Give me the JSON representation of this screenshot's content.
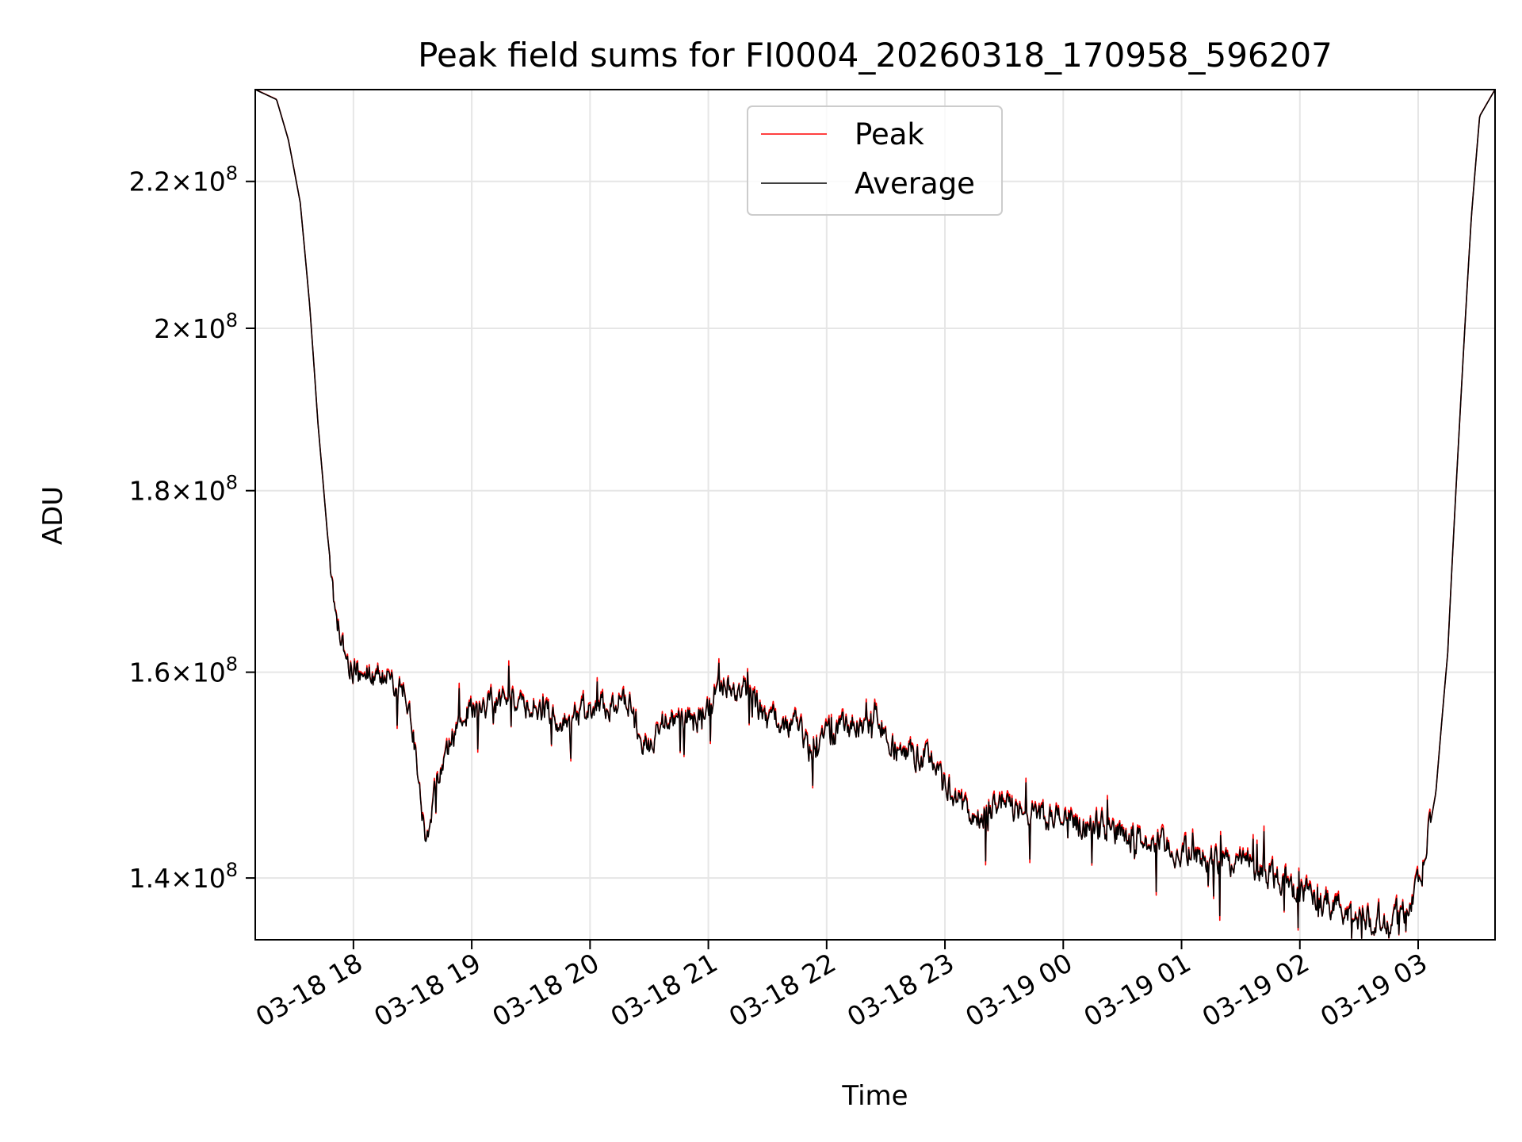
{
  "chart_data": {
    "type": "line",
    "title": "Peak field sums for FI0004_20260318_170958_596207",
    "xlabel": "Time",
    "ylabel": "ADU",
    "yscale": "log",
    "grid": true,
    "legend_position": "top-center",
    "xlim_hours": [
      -0.83,
      9.65
    ],
    "ylim": [
      134500000,
      233500000
    ],
    "x_ticks": [
      {
        "hour": 0,
        "label": "03-18 18"
      },
      {
        "hour": 1,
        "label": "03-18 19"
      },
      {
        "hour": 2,
        "label": "03-18 20"
      },
      {
        "hour": 3,
        "label": "03-18 21"
      },
      {
        "hour": 4,
        "label": "03-18 22"
      },
      {
        "hour": 5,
        "label": "03-18 23"
      },
      {
        "hour": 6,
        "label": "03-19 00"
      },
      {
        "hour": 7,
        "label": "03-19 01"
      },
      {
        "hour": 8,
        "label": "03-19 02"
      },
      {
        "hour": 9,
        "label": "03-19 03"
      }
    ],
    "y_ticks": [
      {
        "value": 140000000,
        "mantissa": "1.4",
        "exp": "8"
      },
      {
        "value": 160000000,
        "mantissa": "1.6",
        "exp": "8"
      },
      {
        "value": 180000000,
        "mantissa": "1.8",
        "exp": "8"
      },
      {
        "value": 200000000,
        "mantissa": "2",
        "exp": "8"
      },
      {
        "value": 220000000,
        "mantissa": "2.2",
        "exp": "8"
      }
    ],
    "series": [
      {
        "name": "Peak",
        "color": "#ff0000",
        "noise": 1000000,
        "offset": 150000
      },
      {
        "name": "Average",
        "color": "#000000",
        "noise": 900000,
        "offset": 0
      }
    ],
    "trend_points_hours_vs_adu": [
      [
        -0.83,
        233500000
      ],
      [
        -0.65,
        232000000
      ],
      [
        -0.55,
        226000000
      ],
      [
        -0.45,
        217000000
      ],
      [
        -0.37,
        203000000
      ],
      [
        -0.3,
        188000000
      ],
      [
        -0.22,
        175000000
      ],
      [
        -0.15,
        166000000
      ],
      [
        -0.05,
        161000000
      ],
      [
        0.1,
        159500000
      ],
      [
        0.3,
        159500000
      ],
      [
        0.45,
        158000000
      ],
      [
        0.55,
        150000000
      ],
      [
        0.6,
        143500000
      ],
      [
        0.75,
        151000000
      ],
      [
        0.95,
        156000000
      ],
      [
        1.2,
        157000000
      ],
      [
        1.5,
        156500000
      ],
      [
        1.8,
        155000000
      ],
      [
        2.1,
        156500000
      ],
      [
        2.35,
        157000000
      ],
      [
        2.45,
        152000000
      ],
      [
        2.6,
        154500000
      ],
      [
        2.8,
        155000000
      ],
      [
        3.0,
        156500000
      ],
      [
        3.15,
        159000000
      ],
      [
        3.3,
        158500000
      ],
      [
        3.5,
        155000000
      ],
      [
        3.75,
        155000000
      ],
      [
        3.85,
        152000000
      ],
      [
        4.0,
        153500000
      ],
      [
        4.2,
        154500000
      ],
      [
        4.45,
        155000000
      ],
      [
        4.6,
        152000000
      ],
      [
        4.9,
        151500000
      ],
      [
        5.05,
        148000000
      ],
      [
        5.2,
        146000000
      ],
      [
        5.5,
        146500000
      ],
      [
        5.8,
        146000000
      ],
      [
        6.1,
        145000000
      ],
      [
        6.4,
        144500000
      ],
      [
        6.8,
        143000000
      ],
      [
        7.1,
        142000000
      ],
      [
        7.5,
        141500000
      ],
      [
        7.8,
        140200000
      ],
      [
        8.1,
        138200000
      ],
      [
        8.4,
        136800000
      ],
      [
        8.75,
        136300000
      ],
      [
        8.95,
        137800000
      ],
      [
        9.05,
        141500000
      ],
      [
        9.15,
        148000000
      ],
      [
        9.25,
        162000000
      ],
      [
        9.35,
        188000000
      ],
      [
        9.45,
        215000000
      ],
      [
        9.52,
        229500000
      ],
      [
        9.65,
        233500000
      ]
    ]
  },
  "legend": {
    "peak_label": "Peak",
    "average_label": "Average"
  }
}
